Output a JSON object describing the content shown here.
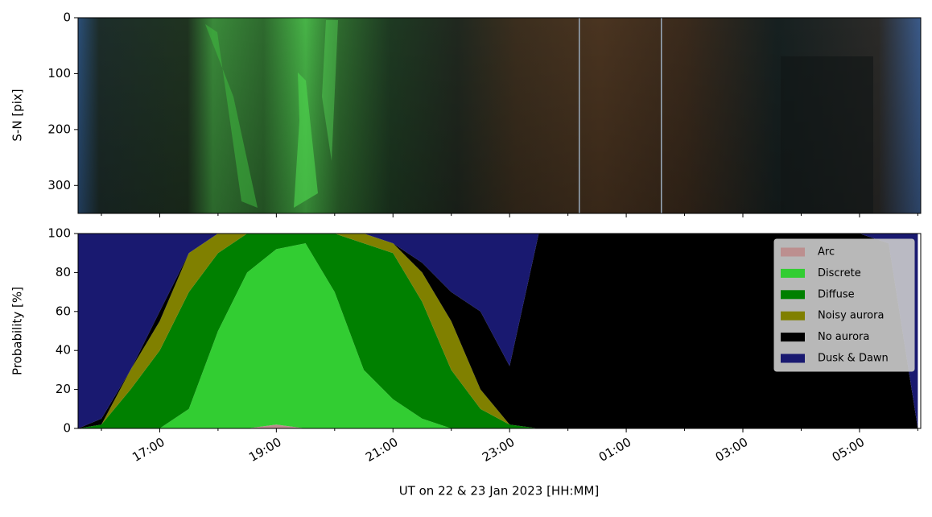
{
  "chart_data": [
    {
      "type": "image",
      "ylabel": "S-N [pix]",
      "ylim": [
        0,
        350
      ],
      "yticks": [
        0,
        100,
        200,
        300
      ],
      "y_inverted": true,
      "xlim": [
        15.6,
        30.05
      ],
      "xticks": [
        17,
        19,
        21,
        23,
        25,
        27,
        29
      ],
      "xminorticks": [
        16,
        18,
        20,
        22,
        24,
        26,
        28,
        30
      ]
    },
    {
      "type": "stacked_area",
      "ylabel": "Probability [%]",
      "xlabel": "UT on 22 & 23 Jan 2023 [HH:MM]",
      "xlim": [
        15.6,
        30.05
      ],
      "xticks": [
        {
          "value": 17,
          "label": "17:00"
        },
        {
          "value": 19,
          "label": "19:00"
        },
        {
          "value": 21,
          "label": "21:00"
        },
        {
          "value": 23,
          "label": "23:00"
        },
        {
          "value": 25,
          "label": "01:00"
        },
        {
          "value": 27,
          "label": "03:00"
        },
        {
          "value": 29,
          "label": "05:00"
        }
      ],
      "xminorticks": [
        16,
        18,
        20,
        22,
        24,
        26,
        28,
        30
      ],
      "ylim": [
        0,
        100
      ],
      "yticks": [
        0,
        20,
        40,
        60,
        80,
        100
      ],
      "legend": "upper right",
      "x": [
        15.6,
        16,
        16.5,
        17,
        17.5,
        18,
        18.5,
        19,
        19.5,
        20,
        20.5,
        21,
        21.5,
        22,
        22.5,
        23,
        23.5,
        24,
        24.5,
        25,
        25.5,
        26,
        26.5,
        27,
        27.5,
        28,
        28.5,
        29,
        29.5,
        30
      ],
      "series": [
        {
          "name": "Arc",
          "color": "#bc8f8f",
          "values": [
            0,
            0,
            0,
            0,
            0,
            0,
            0,
            2,
            0,
            0,
            0,
            0,
            0,
            0,
            0,
            0,
            0,
            0,
            0,
            0,
            0,
            0,
            0,
            0,
            0,
            0,
            0,
            0,
            0,
            0
          ]
        },
        {
          "name": "Discrete",
          "color": "#32cd32",
          "values": [
            0,
            0,
            0,
            0,
            10,
            50,
            80,
            90,
            95,
            70,
            30,
            15,
            5,
            0,
            0,
            0,
            0,
            0,
            0,
            0,
            0,
            0,
            0,
            0,
            0,
            0,
            0,
            0,
            0,
            0
          ]
        },
        {
          "name": "Diffuse",
          "color": "#008000",
          "values": [
            0,
            2,
            20,
            40,
            60,
            40,
            20,
            8,
            5,
            30,
            65,
            75,
            60,
            30,
            10,
            2,
            0,
            0,
            0,
            0,
            0,
            0,
            0,
            0,
            0,
            0,
            0,
            0,
            0,
            0
          ]
        },
        {
          "name": "Noisy aurora",
          "color": "#808000",
          "values": [
            0,
            0,
            10,
            15,
            20,
            10,
            0,
            0,
            0,
            0,
            5,
            5,
            15,
            25,
            10,
            0,
            0,
            0,
            0,
            0,
            0,
            0,
            0,
            0,
            0,
            0,
            0,
            0,
            0,
            0
          ]
        },
        {
          "name": "No aurora",
          "color": "#000000",
          "values": [
            0,
            3,
            0,
            5,
            0,
            0,
            0,
            0,
            0,
            0,
            0,
            0,
            5,
            15,
            40,
            30,
            100,
            100,
            100,
            100,
            100,
            100,
            100,
            100,
            100,
            100,
            100,
            100,
            95,
            0
          ]
        },
        {
          "name": "Dusk & Dawn",
          "color": "#191970",
          "values": [
            100,
            95,
            70,
            40,
            10,
            0,
            0,
            0,
            0,
            0,
            0,
            5,
            15,
            30,
            40,
            68,
            0,
            0,
            0,
            0,
            0,
            0,
            0,
            0,
            0,
            0,
            0,
            0,
            5,
            100
          ]
        }
      ]
    }
  ]
}
